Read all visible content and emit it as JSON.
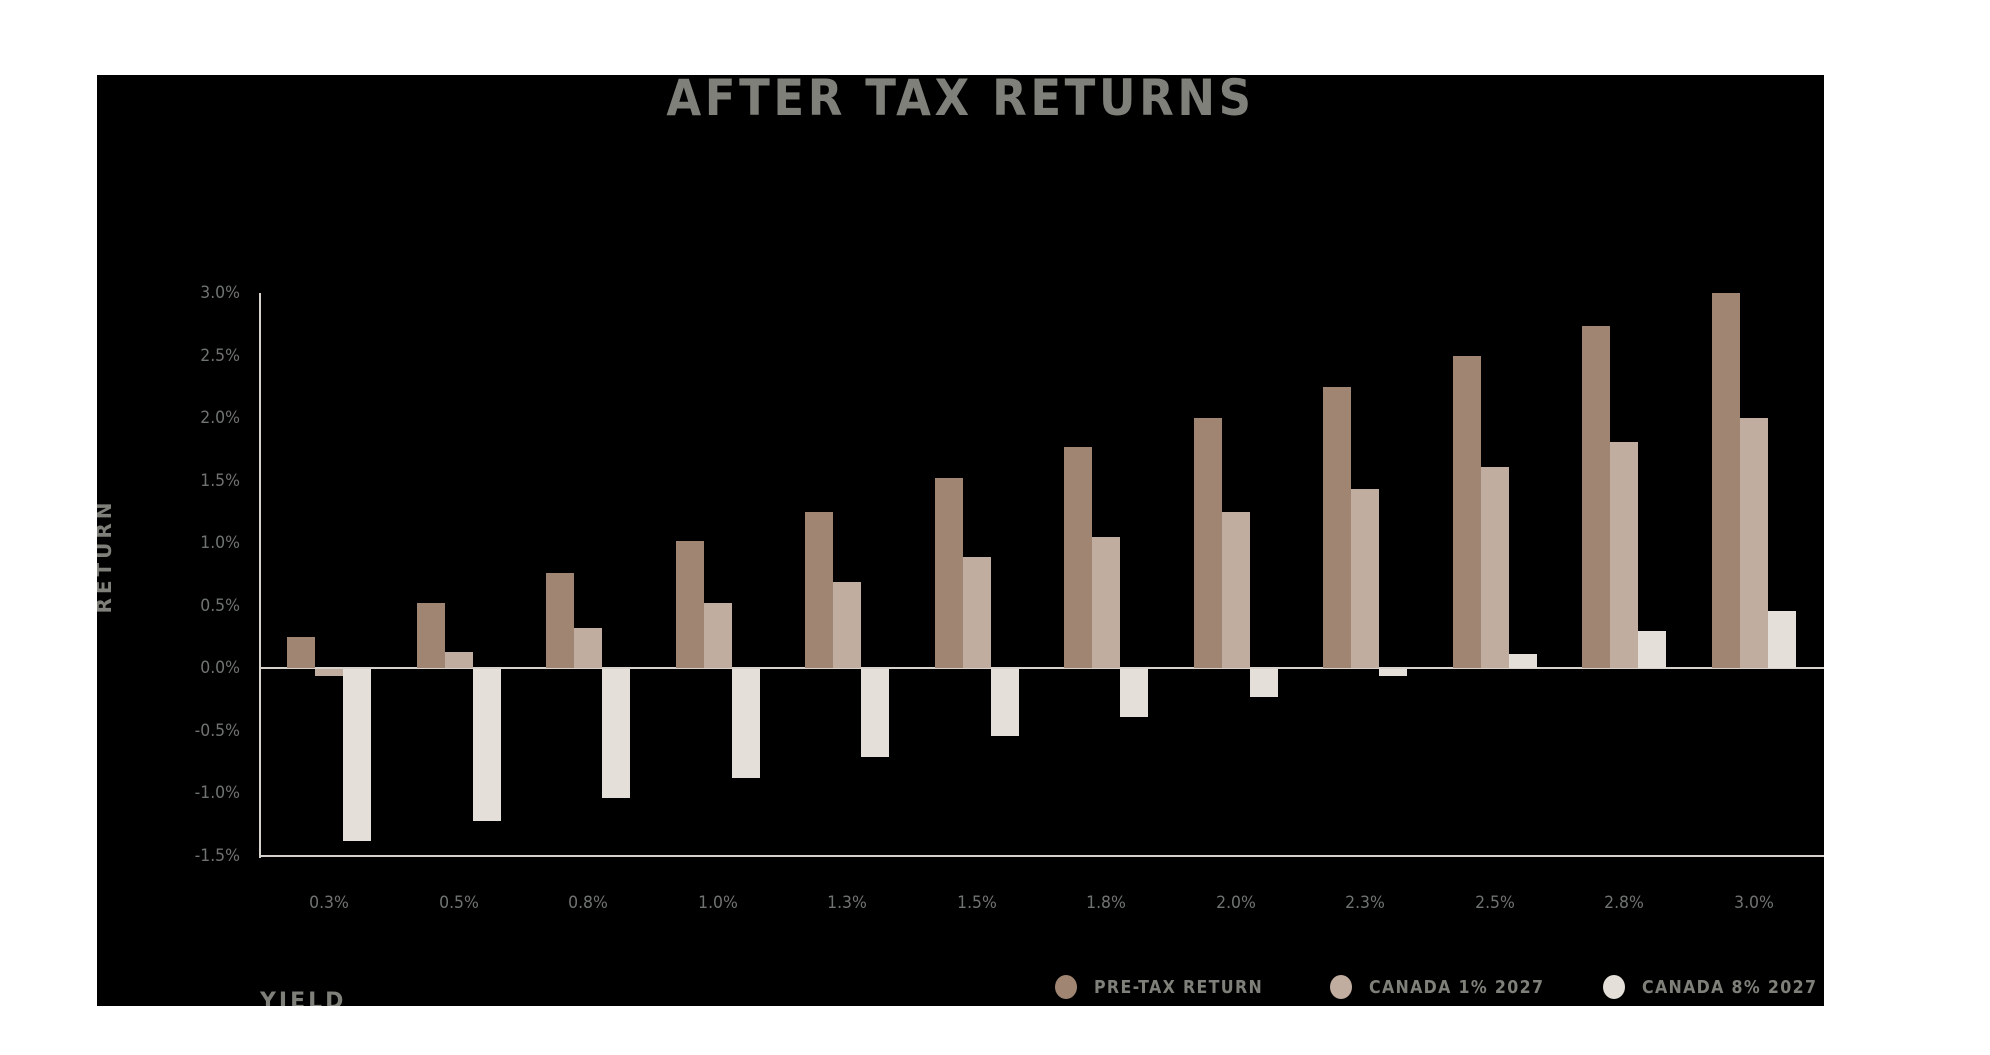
{
  "chart_data": {
    "type": "bar",
    "title": "AFTER TAX RETURNS",
    "xlabel": "YIELD",
    "ylabel": "RETURN",
    "categories": [
      "0.3%",
      "0.5%",
      "0.8%",
      "1.0%",
      "1.3%",
      "1.5%",
      "1.8%",
      "2.0%",
      "2.3%",
      "2.5%",
      "2.8%",
      "3.0%"
    ],
    "series": [
      {
        "name": "PRE-TAX RETURN",
        "color": "#a08672",
        "values": [
          0.25,
          0.52,
          0.76,
          1.02,
          1.25,
          1.52,
          1.77,
          2.0,
          2.25,
          2.5,
          2.74,
          3.0
        ]
      },
      {
        "name": "CANADA 1% 2027",
        "color": "#c1ad9f",
        "values": [
          -0.06,
          0.13,
          0.32,
          0.52,
          0.69,
          0.89,
          1.05,
          1.25,
          1.43,
          1.61,
          1.81,
          2.0
        ]
      },
      {
        "name": "CANADA 8% 2027",
        "color": "#e4dfd8",
        "values": [
          -1.38,
          -1.22,
          -1.04,
          -0.88,
          -0.71,
          -0.54,
          -0.39,
          -0.23,
          -0.06,
          0.11,
          0.3,
          0.46
        ]
      }
    ],
    "yticks": [
      "3.0%",
      "2.5%",
      "2.0%",
      "1.5%",
      "1.0%",
      "0.5%",
      "0.0%",
      "-0.5%",
      "-1.0%",
      "-1.5%"
    ],
    "ytick_values": [
      3.0,
      2.5,
      2.0,
      1.5,
      1.0,
      0.5,
      0.0,
      -0.5,
      -1.0,
      -1.5
    ],
    "ylim": [
      -1.5,
      3.0
    ],
    "grid": false,
    "legend_position": "bottom-right",
    "background": "#000000",
    "text_color": "#7e8079",
    "tick_color": "#6f7372",
    "axis_color": "#d6d1ca"
  },
  "header": {
    "title": "AFTER TAX RETURNS"
  },
  "axes": {
    "x_title": "YIELD",
    "y_title": "RETURN"
  },
  "legend": {
    "items": [
      {
        "label": "PRE-TAX RETURN",
        "color": "#a08672"
      },
      {
        "label": "CANADA 1% 2027",
        "color": "#c1ad9f"
      },
      {
        "label": "CANADA 8% 2027",
        "color": "#e4dfd8"
      }
    ]
  }
}
